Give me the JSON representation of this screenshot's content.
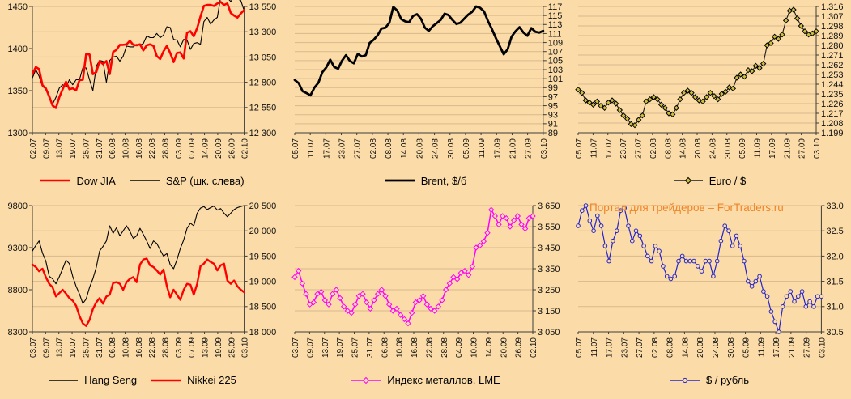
{
  "page": {
    "background": "#FBDCA8",
    "grid_color": "#D9B98C",
    "axis_color": "#3C3C3C",
    "watermark": "Портал для трейдеров – ForTraders.ru",
    "watermark_color": "#F08428"
  },
  "chart_data": [
    {
      "type": "line",
      "name": "dow-sp",
      "x_labels": [
        "02.07",
        "09.07",
        "13.07",
        "19.07",
        "25.07",
        "31.07",
        "06.08",
        "10.08",
        "16.08",
        "22.08",
        "28.08",
        "03.09",
        "07.09",
        "14.09",
        "20.09",
        "26.09",
        "02.10"
      ],
      "axes": {
        "left": {
          "min": 1300,
          "max": 1450,
          "ticks": [
            "1300",
            "1350",
            "1400",
            "1450"
          ]
        },
        "right": {
          "min": 12300,
          "max": 13550,
          "ticks": [
            "12 300",
            "12 550",
            "12 800",
            "13 050",
            "13 300",
            "13 550"
          ]
        }
      },
      "series": [
        {
          "name": "Dow JIA",
          "axis": "right",
          "color": "#FE0000",
          "width": 2.6,
          "marker": "none",
          "values": [
            12880,
            12950,
            12930,
            12770,
            12740,
            12660,
            12570,
            12545,
            12650,
            12730,
            12805,
            12730,
            12740,
            12720,
            12820,
            12825,
            13080,
            13075,
            12880,
            12900,
            13010,
            12980,
            13010,
            12880,
            13100,
            13120,
            13170,
            13170,
            13175,
            13210,
            13170,
            13165,
            13175,
            13115,
            13165,
            13175,
            13160,
            13060,
            13030,
            13105,
            13160,
            13090,
            13000,
            13090,
            13095,
            13035,
            13290,
            13305,
            13255,
            13335,
            13450,
            13555,
            13565,
            13565,
            13555,
            13580,
            13595,
            13565,
            13580,
            13485,
            13460,
            13440,
            13480,
            13515
          ]
        },
        {
          "name": "S&P (шк. слева)",
          "axis": "left",
          "color": "#000000",
          "width": 1.1,
          "marker": "none",
          "values": [
            1365,
            1375,
            1367,
            1355,
            1352,
            1341,
            1334,
            1342,
            1353,
            1357,
            1354,
            1363,
            1357,
            1363,
            1363,
            1377,
            1377,
            1363,
            1350,
            1379,
            1386,
            1385,
            1360,
            1386,
            1390,
            1391,
            1385,
            1391,
            1403,
            1402,
            1402,
            1405,
            1404,
            1406,
            1415,
            1413,
            1413,
            1418,
            1413,
            1416,
            1426,
            1425,
            1411,
            1410,
            1402,
            1411,
            1410,
            1399,
            1406,
            1407,
            1405,
            1432,
            1437,
            1429,
            1434,
            1437,
            1461,
            1466,
            1460,
            1456,
            1461,
            1459,
            1457,
            1445
          ]
        }
      ]
    },
    {
      "type": "line",
      "name": "brent",
      "x_labels": [
        "05.07",
        "11.07",
        "17.07",
        "23.07",
        "27.07",
        "02.08",
        "08.08",
        "14.08",
        "20.08",
        "24.08",
        "30.08",
        "05.09",
        "11.09",
        "17.09",
        "21.09",
        "27.09",
        "03.10"
      ],
      "axes": {
        "right": {
          "min": 89,
          "max": 117,
          "ticks": [
            "89",
            "91",
            "93",
            "95",
            "97",
            "99",
            "101",
            "103",
            "105",
            "107",
            "109",
            "111",
            "113",
            "115",
            "117"
          ]
        }
      },
      "series": [
        {
          "name": "Brent, $/б",
          "axis": "right",
          "color": "#000000",
          "width": 2.8,
          "marker": "none",
          "values": [
            100.7,
            100.0,
            98.2,
            97.8,
            97.3,
            99.0,
            100.1,
            102.4,
            103.5,
            105.2,
            103.6,
            103.2,
            105.0,
            106.2,
            104.9,
            104.4,
            106.5,
            105.9,
            106.2,
            108.9,
            109.6,
            110.6,
            112.1,
            112.3,
            113.4,
            116.9,
            116.1,
            114.2,
            113.7,
            113.5,
            114.9,
            115.3,
            114.3,
            112.3,
            111.6,
            112.6,
            113.3,
            114.0,
            115.4,
            115.1,
            114.0,
            113.1,
            113.4,
            114.3,
            115.2,
            115.8,
            117.0,
            116.7,
            115.9,
            113.8,
            112.0,
            110.0,
            108.2,
            106.4,
            107.5,
            110.3,
            111.5,
            112.4,
            111.2,
            110.5,
            112.2,
            111.4,
            111.2,
            111.6
          ]
        }
      ]
    },
    {
      "type": "line",
      "name": "euro-usd",
      "x_labels": [
        "05.07",
        "11.07",
        "17.07",
        "23.07",
        "27.07",
        "02.08",
        "08.08",
        "14.08",
        "20.08",
        "24.08",
        "30.08",
        "05.09",
        "11.09",
        "17.09",
        "21.09",
        "27.09",
        "03.10"
      ],
      "axes": {
        "right": {
          "min": 1.199,
          "max": 1.316,
          "ticks": [
            "1.199",
            "1.208",
            "1.217",
            "1.226",
            "1.235",
            "1.244",
            "1.253",
            "1.262",
            "1.271",
            "1.280",
            "1.289",
            "1.298",
            "1.307",
            "1.316"
          ]
        }
      },
      "series": [
        {
          "name": "Euro / $",
          "axis": "right",
          "color": "#1A1A1A",
          "width": 1.1,
          "marker": "diamond",
          "marker_fill": "#CDBE3C",
          "marker_stroke": "#000000",
          "values": [
            1.239,
            1.236,
            1.229,
            1.227,
            1.225,
            1.228,
            1.224,
            1.222,
            1.227,
            1.229,
            1.226,
            1.22,
            1.215,
            1.212,
            1.207,
            1.206,
            1.211,
            1.215,
            1.228,
            1.23,
            1.232,
            1.23,
            1.225,
            1.222,
            1.217,
            1.216,
            1.222,
            1.23,
            1.236,
            1.238,
            1.236,
            1.232,
            1.229,
            1.228,
            1.232,
            1.236,
            1.233,
            1.23,
            1.235,
            1.237,
            1.241,
            1.24,
            1.25,
            1.253,
            1.251,
            1.257,
            1.256,
            1.261,
            1.259,
            1.263,
            1.28,
            1.282,
            1.288,
            1.286,
            1.29,
            1.303,
            1.312,
            1.313,
            1.305,
            1.298,
            1.293,
            1.29,
            1.291,
            1.293
          ]
        }
      ]
    },
    {
      "type": "line",
      "name": "hangseng-nikkei",
      "x_labels": [
        "03.07",
        "09.07",
        "13.07",
        "19.07",
        "25.07",
        "31.07",
        "06.08",
        "10.08",
        "16.08",
        "22.08",
        "28.08",
        "03.09",
        "07.09",
        "13.09",
        "19.09",
        "25.09",
        "03.10"
      ],
      "axes": {
        "left": {
          "min": 8300,
          "max": 9800,
          "ticks": [
            "8300",
            "8800",
            "9300",
            "9800"
          ]
        },
        "right": {
          "min": 18000,
          "max": 20500,
          "ticks": [
            "18 000",
            "18 500",
            "19 000",
            "19 500",
            "20 000",
            "20 500"
          ]
        }
      },
      "series": [
        {
          "name": "Hang Seng",
          "axis": "right",
          "color": "#000000",
          "width": 1.1,
          "marker": "none",
          "values": [
            19600,
            19710,
            19800,
            19560,
            19400,
            19100,
            19050,
            18950,
            19090,
            19250,
            19420,
            19350,
            19100,
            18900,
            18750,
            18560,
            18650,
            18880,
            19050,
            19275,
            19600,
            19690,
            19800,
            20100,
            19950,
            20060,
            19900,
            20000,
            20100,
            19990,
            19850,
            19900,
            20050,
            19930,
            19800,
            19650,
            19800,
            19750,
            19620,
            19500,
            19550,
            19330,
            19250,
            19430,
            19650,
            19820,
            20050,
            20150,
            20100,
            20350,
            20450,
            20480,
            20420,
            20460,
            20490,
            20410,
            20440,
            20350,
            20280,
            20350,
            20420,
            20460,
            20480,
            20500
          ]
        },
        {
          "name": "Nikkei 225",
          "axis": "left",
          "color": "#FE0000",
          "width": 2.4,
          "marker": "none",
          "values": [
            9100,
            9070,
            9020,
            9050,
            8950,
            8870,
            8830,
            8720,
            8760,
            8800,
            8755,
            8700,
            8670,
            8610,
            8490,
            8400,
            8370,
            8440,
            8570,
            8650,
            8700,
            8635,
            8720,
            8740,
            8880,
            8890,
            8870,
            8800,
            8890,
            8930,
            8950,
            8890,
            9100,
            9160,
            9170,
            9090,
            9070,
            9030,
            8980,
            9040,
            8840,
            8710,
            8800,
            8740,
            8680,
            8800,
            8870,
            8860,
            8740,
            8870,
            9080,
            9110,
            9160,
            9130,
            9110,
            9030,
            9090,
            9110,
            8910,
            8870,
            8910,
            8840,
            8800,
            8770
          ]
        }
      ]
    },
    {
      "type": "line",
      "name": "lme-metals",
      "x_labels": [
        "03.07",
        "09.07",
        "13.07",
        "19.07",
        "25.07",
        "31.07",
        "06.08",
        "10.08",
        "16.08",
        "22.08",
        "28.08",
        "04.09",
        "10.09",
        "14.09",
        "20.09",
        "26.09",
        "02.10"
      ],
      "axes": {
        "right": {
          "min": 3050,
          "max": 3650,
          "ticks": [
            "3 050",
            "3 150",
            "3 250",
            "3 350",
            "3 450",
            "3 550",
            "3 650"
          ]
        }
      },
      "series": [
        {
          "name": "Индекс металлов, LME",
          "axis": "right",
          "color": "#FF00FF",
          "width": 1.5,
          "marker": "diamond",
          "marker_fill": "#FBDCA8",
          "marker_stroke": "#FF00FF",
          "values": [
            3310,
            3340,
            3280,
            3230,
            3180,
            3190,
            3230,
            3240,
            3200,
            3180,
            3230,
            3250,
            3210,
            3170,
            3150,
            3140,
            3180,
            3220,
            3230,
            3190,
            3160,
            3200,
            3230,
            3250,
            3220,
            3180,
            3150,
            3160,
            3130,
            3110,
            3090,
            3140,
            3190,
            3200,
            3220,
            3180,
            3160,
            3150,
            3170,
            3200,
            3250,
            3280,
            3310,
            3300,
            3330,
            3340,
            3320,
            3360,
            3450,
            3460,
            3480,
            3520,
            3630,
            3600,
            3560,
            3600,
            3590,
            3550,
            3580,
            3600,
            3560,
            3540,
            3590,
            3600
          ]
        }
      ]
    },
    {
      "type": "line",
      "name": "usd-rub",
      "x_labels": [
        "05.07",
        "11.07",
        "17.07",
        "23.07",
        "27.07",
        "02.08",
        "08.08",
        "14.08",
        "20.08",
        "24.08",
        "30.08",
        "05.09",
        "11.09",
        "17.09",
        "21.09",
        "27.09",
        "03.10"
      ],
      "axes": {
        "right": {
          "min": 30.5,
          "max": 33.0,
          "ticks": [
            "30.5",
            "31.0",
            "31.5",
            "32.0",
            "32.5",
            "33.0"
          ]
        }
      },
      "series": [
        {
          "name": "$ / рубль",
          "axis": "right",
          "color": "#2424CC",
          "width": 1.2,
          "marker": "circle",
          "marker_fill": "#FBDCA8",
          "marker_stroke": "#2424CC",
          "values": [
            32.6,
            32.9,
            33.0,
            32.7,
            32.5,
            32.8,
            32.6,
            32.2,
            31.9,
            32.3,
            32.5,
            32.9,
            32.95,
            32.6,
            32.3,
            32.5,
            32.4,
            32.2,
            32.0,
            31.9,
            32.2,
            32.1,
            31.8,
            31.6,
            31.55,
            31.6,
            31.9,
            32.0,
            31.9,
            31.9,
            31.9,
            31.8,
            31.7,
            31.9,
            31.9,
            31.6,
            31.9,
            32.3,
            32.6,
            32.5,
            32.2,
            32.4,
            32.2,
            31.9,
            31.5,
            31.4,
            31.5,
            31.6,
            31.3,
            31.2,
            30.9,
            30.7,
            30.5,
            31.0,
            31.2,
            31.3,
            31.1,
            31.2,
            31.3,
            31.0,
            31.1,
            31.0,
            31.2,
            31.2
          ]
        }
      ]
    }
  ]
}
